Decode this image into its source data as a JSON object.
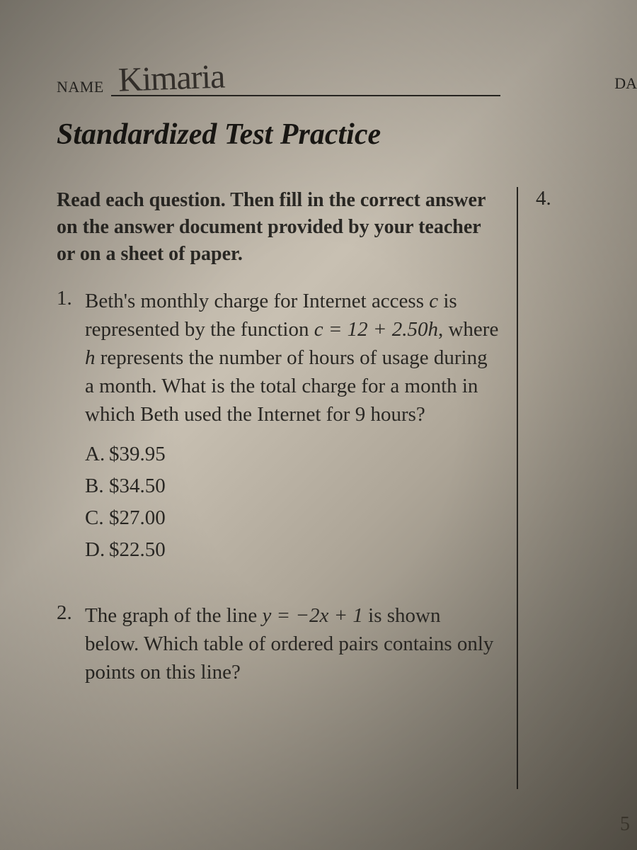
{
  "header": {
    "name_label": "NAME",
    "name_value": "Kimaria",
    "date_label": "DA",
    "title": "Standardized Test Practice"
  },
  "instructions": "Read each question. Then fill in the correct answer on the answer document provided by your teacher or on a sheet of paper.",
  "questions": {
    "q1": {
      "number": "1.",
      "text_parts": {
        "p1": "Beth's monthly charge for Internet access ",
        "var1": "c",
        "p2": " is represented by the function ",
        "eq": "c = 12 + 2.50h",
        "p3": ", where ",
        "var2": "h",
        "p4": " represents the number of hours of usage during a month. What is the total charge for a month in which Beth used the Internet for 9 hours?"
      },
      "choices": {
        "a": {
          "letter": "A.",
          "text": "$39.95"
        },
        "b": {
          "letter": "B.",
          "text": "$34.50"
        },
        "c": {
          "letter": "C.",
          "text": "$27.00"
        },
        "d": {
          "letter": "D.",
          "text": "$22.50"
        }
      }
    },
    "q2": {
      "number": "2.",
      "text_parts": {
        "p1": "The graph of the line ",
        "eq": "y = −2x + 1",
        "p2": " is shown below. Which table of ordered pairs contains only points on this line?"
      }
    }
  },
  "right_column": {
    "q4_number": "4."
  },
  "bottom_number": "5"
}
